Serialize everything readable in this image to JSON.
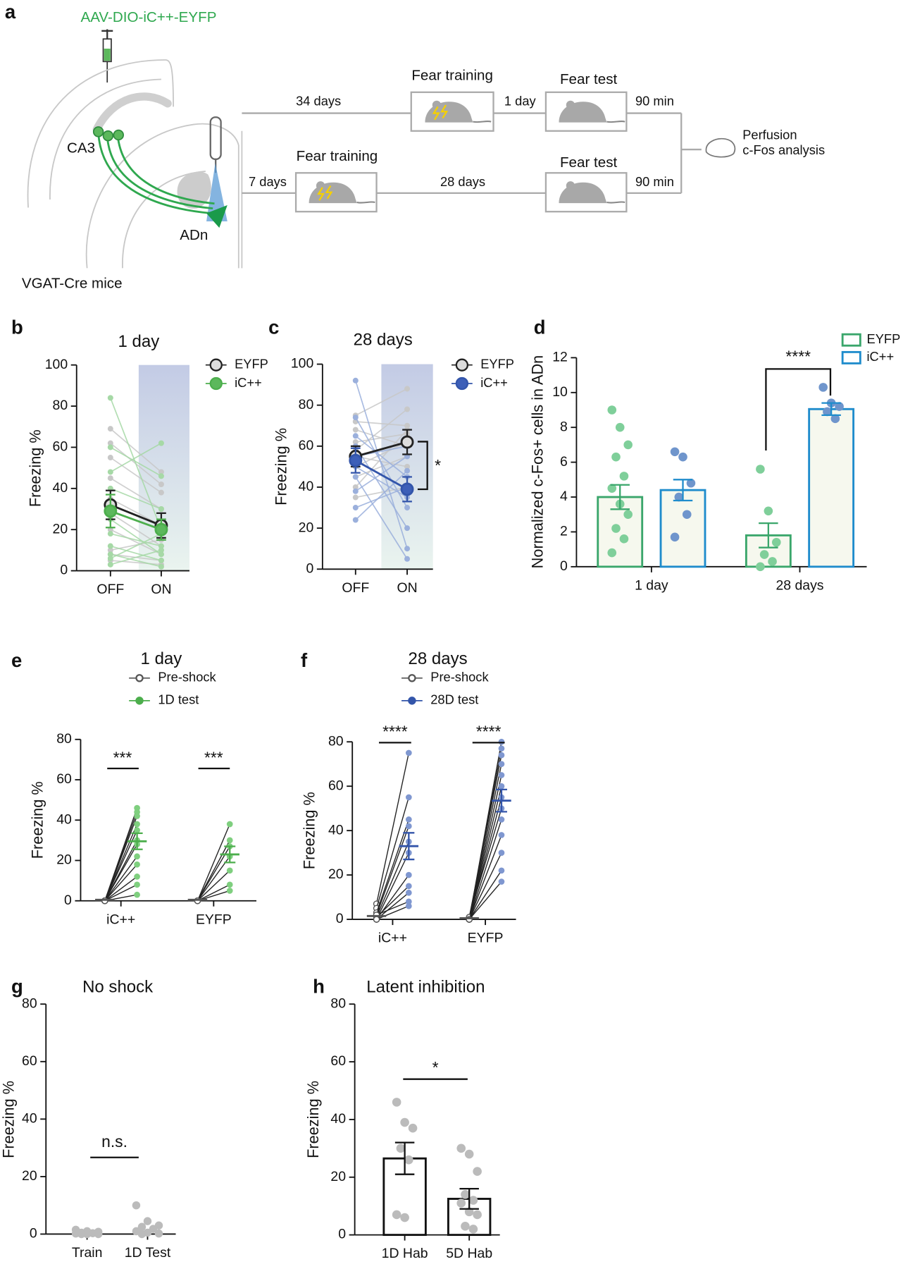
{
  "diagram": {
    "panel": "a",
    "virus": "AAV-DIO-iC++-EYFP",
    "ca3": "CA3",
    "adn": "ADn",
    "mice": "VGAT-Cre mice",
    "top": {
      "delay": "34 days",
      "training": "Fear training",
      "gap": "1 day",
      "test": "Fear test",
      "wait": "90 min"
    },
    "bottom": {
      "delay": "7 days",
      "training": "Fear training",
      "gap": "28 days",
      "test": "Fear test",
      "wait": "90 min"
    },
    "endpoint": [
      "Perfusion",
      "c-Fos analysis"
    ]
  },
  "chart_data": [
    {
      "type": "line",
      "panel": "b",
      "title": "1 day",
      "ylabel": "Freezing %",
      "categories": [
        "OFF",
        "ON"
      ],
      "shaded": "ON",
      "ylim": [
        0,
        100
      ],
      "yticks": [
        0,
        20,
        40,
        60,
        80,
        100
      ],
      "series": [
        {
          "name": "EYFP",
          "color": "#222222",
          "fill": "#dddddd",
          "subject_color": "#c8c8c8",
          "values": [
            32,
            22
          ],
          "errors": [
            7,
            6
          ],
          "subjects": [
            [
              69,
              48
            ],
            [
              62,
              42
            ],
            [
              55,
              38
            ],
            [
              45,
              30
            ],
            [
              35,
              22
            ],
            [
              28,
              12
            ],
            [
              20,
              8
            ],
            [
              10,
              15
            ],
            [
              8,
              5
            ],
            [
              5,
              3
            ]
          ]
        },
        {
          "name": "iC++",
          "color": "#4cae4c",
          "fill": "#5cb85c",
          "subject_color": "#a6d9a6",
          "values": [
            29,
            20
          ],
          "errors": [
            8,
            5
          ],
          "subjects": [
            [
              84,
              20
            ],
            [
              60,
              46
            ],
            [
              48,
              62
            ],
            [
              40,
              30
            ],
            [
              25,
              8
            ],
            [
              18,
              12
            ],
            [
              12,
              5
            ],
            [
              8,
              2
            ],
            [
              6,
              18
            ],
            [
              3,
              10
            ]
          ]
        }
      ]
    },
    {
      "type": "line",
      "panel": "c",
      "title": "28 days",
      "ylabel": "Freezing %",
      "categories": [
        "OFF",
        "ON"
      ],
      "shaded": "ON",
      "ylim": [
        0,
        100
      ],
      "yticks": [
        0,
        20,
        40,
        60,
        80,
        100
      ],
      "annotations": [
        "*"
      ],
      "series": [
        {
          "name": "EYFP",
          "color": "#222222",
          "fill": "#dddddd",
          "subject_color": "#c8c8c8",
          "values": [
            55,
            62
          ],
          "errors": [
            5,
            6
          ],
          "subjects": [
            [
              75,
              88
            ],
            [
              72,
              70
            ],
            [
              68,
              60
            ],
            [
              62,
              66
            ],
            [
              58,
              78
            ],
            [
              55,
              50
            ],
            [
              50,
              62
            ],
            [
              45,
              55
            ],
            [
              40,
              68
            ],
            [
              35,
              40
            ]
          ]
        },
        {
          "name": "iC++",
          "color": "#3355aa",
          "fill": "#3d5fb8",
          "subject_color": "#9bb0dc",
          "values": [
            53,
            39
          ],
          "errors": [
            6,
            6
          ],
          "subjects": [
            [
              92,
              10
            ],
            [
              74,
              30
            ],
            [
              65,
              45
            ],
            [
              60,
              20
            ],
            [
              55,
              60
            ],
            [
              50,
              35
            ],
            [
              45,
              5
            ],
            [
              38,
              55
            ],
            [
              30,
              40
            ],
            [
              24,
              48
            ]
          ]
        }
      ]
    },
    {
      "type": "bar",
      "panel": "d",
      "ylabel": "Normalized c-Fos+ cells in ADn",
      "categories": [
        "1 day",
        "28 days"
      ],
      "ylim": [
        0,
        12
      ],
      "yticks": [
        0,
        2,
        4,
        6,
        8,
        10,
        12
      ],
      "bar_fill": "#f6f8ee",
      "annotations": [
        "****"
      ],
      "series": [
        {
          "name": "EYFP",
          "color": "#3aa66b",
          "point_color": "#7fcf9a",
          "values": [
            4.0,
            1.8
          ],
          "errors": [
            0.7,
            0.7
          ],
          "points": [
            [
              9,
              8,
              7,
              6.3,
              5.2,
              4.5,
              3.6,
              3,
              2.2,
              1.6,
              0.8
            ],
            [
              5.6,
              3.2,
              1.4,
              0.7,
              0.3,
              0
            ]
          ]
        },
        {
          "name": "iC++",
          "color": "#1f8ccc",
          "point_color": "#6f95cc",
          "values": [
            4.4,
            9.05
          ],
          "errors": [
            0.6,
            0.35
          ],
          "points": [
            [
              6.6,
              6.3,
              4.8,
              4,
              3,
              1.7
            ],
            [
              10.3,
              9.4,
              9.2,
              8.9,
              8.5
            ]
          ]
        }
      ]
    },
    {
      "type": "slope",
      "panel": "e",
      "title": "1 day",
      "ylabel": "Freezing %",
      "categories": [
        "iC++",
        "EYFP"
      ],
      "ylim": [
        0,
        80
      ],
      "yticks": [
        0,
        20,
        40,
        60,
        80
      ],
      "pair_color": "#222222",
      "annotations": [
        "***",
        "***"
      ],
      "series": [
        {
          "name": "Pre-shock",
          "color": "#555555",
          "fill": "#ffffff",
          "values": [
            0.5,
            0.5
          ]
        },
        {
          "name": "1D test",
          "color": "#4cae4c",
          "fill": "#4cae4c",
          "subject_color": "#7fcf7f",
          "values": [
            29.5,
            23
          ],
          "errors": [
            4,
            4
          ]
        }
      ],
      "subjects": [
        [
          [
            0,
            46
          ],
          [
            0,
            44
          ],
          [
            0,
            42
          ],
          [
            0,
            38
          ],
          [
            0,
            35
          ],
          [
            0,
            30
          ],
          [
            0,
            28
          ],
          [
            0,
            22
          ],
          [
            0,
            18
          ],
          [
            0,
            12
          ],
          [
            0,
            8
          ],
          [
            0,
            3
          ]
        ],
        [
          [
            0,
            38
          ],
          [
            0,
            30
          ],
          [
            0,
            27
          ],
          [
            0,
            22
          ],
          [
            0,
            15
          ],
          [
            0,
            8
          ],
          [
            0,
            5
          ]
        ]
      ]
    },
    {
      "type": "slope",
      "panel": "f",
      "title": "28 days",
      "ylabel": "Freezing %",
      "categories": [
        "iC++",
        "EYFP"
      ],
      "ylim": [
        0,
        80
      ],
      "yticks": [
        0,
        20,
        40,
        60,
        80
      ],
      "pair_color": "#222222",
      "annotations": [
        "****",
        "****"
      ],
      "series": [
        {
          "name": "Pre-shock",
          "color": "#555555",
          "fill": "#ffffff",
          "values": [
            1.5,
            0.5
          ]
        },
        {
          "name": "28D test",
          "color": "#3355aa",
          "fill": "#3355aa",
          "subject_color": "#7f97d0",
          "values": [
            33,
            53.5
          ],
          "errors": [
            6,
            5
          ]
        }
      ],
      "subjects": [
        [
          [
            7,
            75
          ],
          [
            5,
            55
          ],
          [
            3,
            45
          ],
          [
            2,
            42
          ],
          [
            1,
            35
          ],
          [
            0,
            30
          ],
          [
            0,
            20
          ],
          [
            1,
            15
          ],
          [
            0,
            12
          ],
          [
            2,
            8
          ],
          [
            0,
            6
          ]
        ],
        [
          [
            0,
            80
          ],
          [
            0,
            77
          ],
          [
            1,
            74
          ],
          [
            0,
            70
          ],
          [
            0,
            65
          ],
          [
            0,
            60
          ],
          [
            0,
            55
          ],
          [
            1,
            50
          ],
          [
            0,
            45
          ],
          [
            0,
            38
          ],
          [
            0,
            30
          ],
          [
            0,
            22
          ],
          [
            0,
            17
          ]
        ]
      ]
    },
    {
      "type": "scatter",
      "panel": "g",
      "title": "No shock",
      "ylabel": "Freezing %",
      "categories": [
        "Train",
        "1D Test"
      ],
      "ylim": [
        0,
        80
      ],
      "yticks": [
        0,
        20,
        40,
        60,
        80
      ],
      "color": "#bbbbbb",
      "annotations": [
        "n.s."
      ],
      "points": [
        [
          1.5,
          1,
          0.8,
          0.5,
          0.3,
          0.2,
          0,
          0,
          0
        ],
        [
          10,
          4.5,
          3,
          2.5,
          1.8,
          1,
          0.5,
          0.2,
          0
        ]
      ]
    },
    {
      "type": "bar",
      "panel": "h",
      "title": "Latent inhibition",
      "ylabel": "Freezing %",
      "categories": [
        "1D Hab",
        "5D Hab"
      ],
      "ylim": [
        0,
        80
      ],
      "yticks": [
        0,
        20,
        40,
        60,
        80
      ],
      "bar_fill": "#ffffff",
      "annotations": [
        "*"
      ],
      "series": [
        {
          "color": "#111111",
          "point_color": "#bbbbbb",
          "values": [
            26.5,
            12.5
          ],
          "errors": [
            5.5,
            3.5
          ],
          "points": [
            [
              46,
              39,
              37,
              30,
              26,
              7,
              6
            ],
            [
              30,
              28,
              22,
              14,
              12,
              11,
              8,
              7,
              3,
              2
            ]
          ]
        }
      ]
    }
  ]
}
